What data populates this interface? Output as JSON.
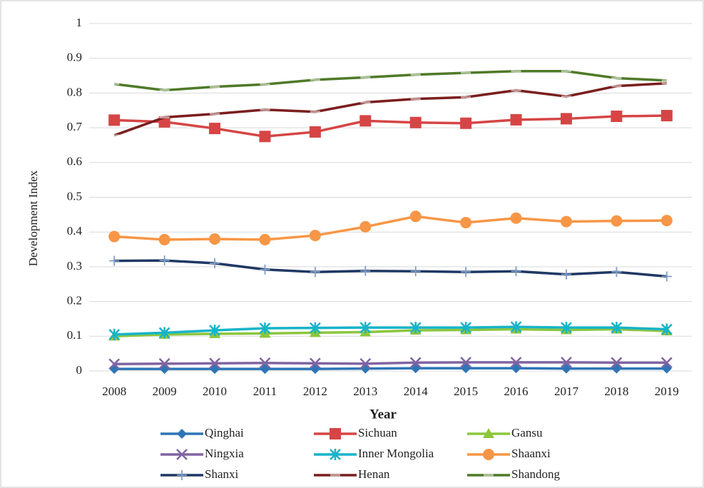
{
  "chart_data": {
    "type": "line",
    "x_label": "Year",
    "y_label": "Development Index",
    "categories": [
      "2008",
      "2009",
      "2010",
      "2011",
      "2012",
      "2013",
      "2014",
      "2015",
      "2016",
      "2017",
      "2018",
      "2019"
    ],
    "ylim": [
      0,
      1
    ],
    "yticks": [
      0,
      0.1,
      0.2,
      0.3,
      0.4,
      0.5,
      0.6,
      0.7,
      0.8,
      0.9,
      1
    ],
    "grid": true,
    "legend": "bottom",
    "series": [
      {
        "name": "Qinghai",
        "color": "#2e75b6",
        "marker": "diamond",
        "values": [
          0.006,
          0.006,
          0.006,
          0.006,
          0.006,
          0.007,
          0.008,
          0.008,
          0.008,
          0.007,
          0.007,
          0.007
        ]
      },
      {
        "name": "Sichuan",
        "color": "#d64545",
        "marker": "square",
        "values": [
          0.722,
          0.717,
          0.698,
          0.675,
          0.688,
          0.72,
          0.715,
          0.713,
          0.723,
          0.726,
          0.733,
          0.735
        ]
      },
      {
        "name": "Gansu",
        "color": "#8cc63f",
        "marker": "triangle",
        "values": [
          0.1,
          0.105,
          0.107,
          0.108,
          0.11,
          0.112,
          0.117,
          0.118,
          0.12,
          0.118,
          0.12,
          0.115
        ]
      },
      {
        "name": "Ningxia",
        "color": "#8064a2",
        "marker": "x",
        "values": [
          0.02,
          0.021,
          0.022,
          0.023,
          0.022,
          0.021,
          0.024,
          0.025,
          0.025,
          0.025,
          0.024,
          0.024
        ]
      },
      {
        "name": "Inner Mongolia",
        "color": "#17b3c9",
        "marker": "star",
        "values": [
          0.105,
          0.11,
          0.117,
          0.123,
          0.124,
          0.125,
          0.125,
          0.125,
          0.127,
          0.125,
          0.125,
          0.12
        ]
      },
      {
        "name": "Shaanxi",
        "color": "#f79646",
        "marker": "circle",
        "values": [
          0.387,
          0.378,
          0.38,
          0.378,
          0.39,
          0.415,
          0.445,
          0.427,
          0.44,
          0.43,
          0.432,
          0.433
        ]
      },
      {
        "name": "Shanxi",
        "color": "#1f3864",
        "marker": "plus",
        "values": [
          0.317,
          0.318,
          0.31,
          0.292,
          0.285,
          0.288,
          0.287,
          0.285,
          0.287,
          0.278,
          0.285,
          0.272
        ]
      },
      {
        "name": "Henan",
        "color": "#7b1e1e",
        "marker": "dash",
        "values": [
          0.678,
          0.73,
          0.74,
          0.752,
          0.746,
          0.773,
          0.783,
          0.788,
          0.808,
          0.79,
          0.82,
          0.828
        ]
      },
      {
        "name": "Shandong",
        "color": "#4f7a28",
        "marker": "dash",
        "values": [
          0.826,
          0.808,
          0.818,
          0.825,
          0.838,
          0.845,
          0.853,
          0.858,
          0.863,
          0.863,
          0.843,
          0.836
        ]
      }
    ]
  }
}
